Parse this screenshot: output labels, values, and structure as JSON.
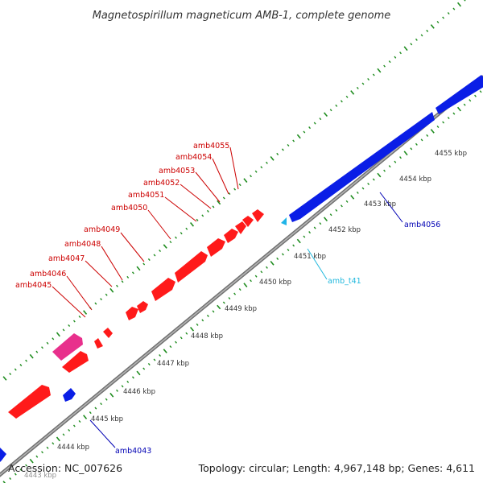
{
  "title": "Magnetospirillum magneticum AMB-1, complete genome",
  "footer": {
    "accession": "Accession: NC_007626",
    "summary": "Topology: circular; Length: 4,967,148 bp; Genes: 4,611"
  },
  "colors": {
    "forward_gene": "#ff1a1a",
    "reverse_gene": "#0a1ee6",
    "pseudo_gene": "#e8308c",
    "trna": "#1fb4e8",
    "backbone": "#8c8c8c",
    "tick": "#1e8c1e",
    "forward_label": "#cc0000",
    "reverse_label": "#0000b4",
    "trna_label": "#20b8dd"
  },
  "ticks": [
    {
      "label": "4443 kbp"
    },
    {
      "label": "4444 kbp"
    },
    {
      "label": "4445 kbp"
    },
    {
      "label": "4446 kbp"
    },
    {
      "label": "4447 kbp"
    },
    {
      "label": "4448 kbp"
    },
    {
      "label": "4449 kbp"
    },
    {
      "label": "4450 kbp"
    },
    {
      "label": "4451 kbp"
    },
    {
      "label": "4452 kbp"
    },
    {
      "label": "4453 kbp"
    },
    {
      "label": "4454 kbp"
    },
    {
      "label": "4455 kbp"
    }
  ],
  "gene_labels": {
    "forward": [
      "amb4045",
      "amb4046",
      "amb4047",
      "amb4048",
      "amb4049",
      "amb4050",
      "amb4051",
      "amb4052",
      "amb4053",
      "amb4054",
      "amb4055"
    ],
    "reverse": [
      "amb4043",
      "amb4056"
    ],
    "trna": [
      "amb_t41"
    ]
  }
}
